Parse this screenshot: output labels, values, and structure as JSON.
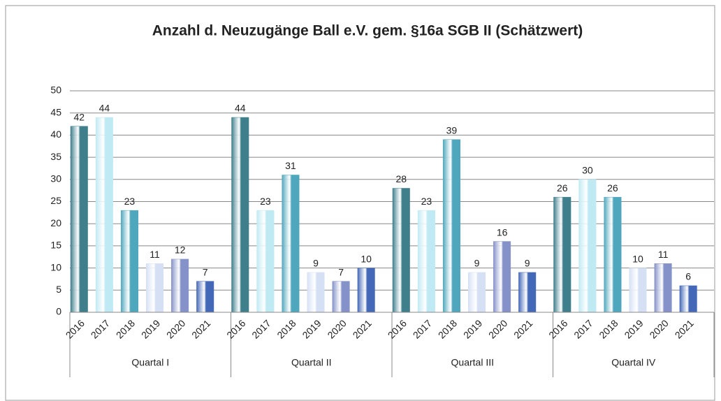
{
  "chart_data": {
    "type": "bar",
    "title": "Anzahl d. Neuzugänge Ball e.V. gem. §16a SGB II (Schätzwert)",
    "categories": [
      "Quartal I",
      "Quartal II",
      "Quartal III",
      "Quartal IV"
    ],
    "series": [
      {
        "name": "2016",
        "color": "#3f7f8c",
        "values": [
          42,
          44,
          28,
          26
        ]
      },
      {
        "name": "2017",
        "color": "#bfeaf3",
        "values": [
          44,
          23,
          23,
          30
        ]
      },
      {
        "name": "2018",
        "color": "#4fa7bd",
        "values": [
          23,
          31,
          39,
          26
        ]
      },
      {
        "name": "2019",
        "color": "#d6e0f5",
        "values": [
          11,
          9,
          9,
          10
        ]
      },
      {
        "name": "2020",
        "color": "#8592c9",
        "values": [
          12,
          7,
          16,
          11
        ]
      },
      {
        "name": "2021",
        "color": "#4468b8",
        "values": [
          7,
          10,
          9,
          6
        ]
      }
    ],
    "ylim": [
      0,
      50
    ],
    "yticks": [
      0,
      5,
      10,
      15,
      20,
      25,
      30,
      35,
      40,
      45,
      50
    ],
    "grid": true
  }
}
